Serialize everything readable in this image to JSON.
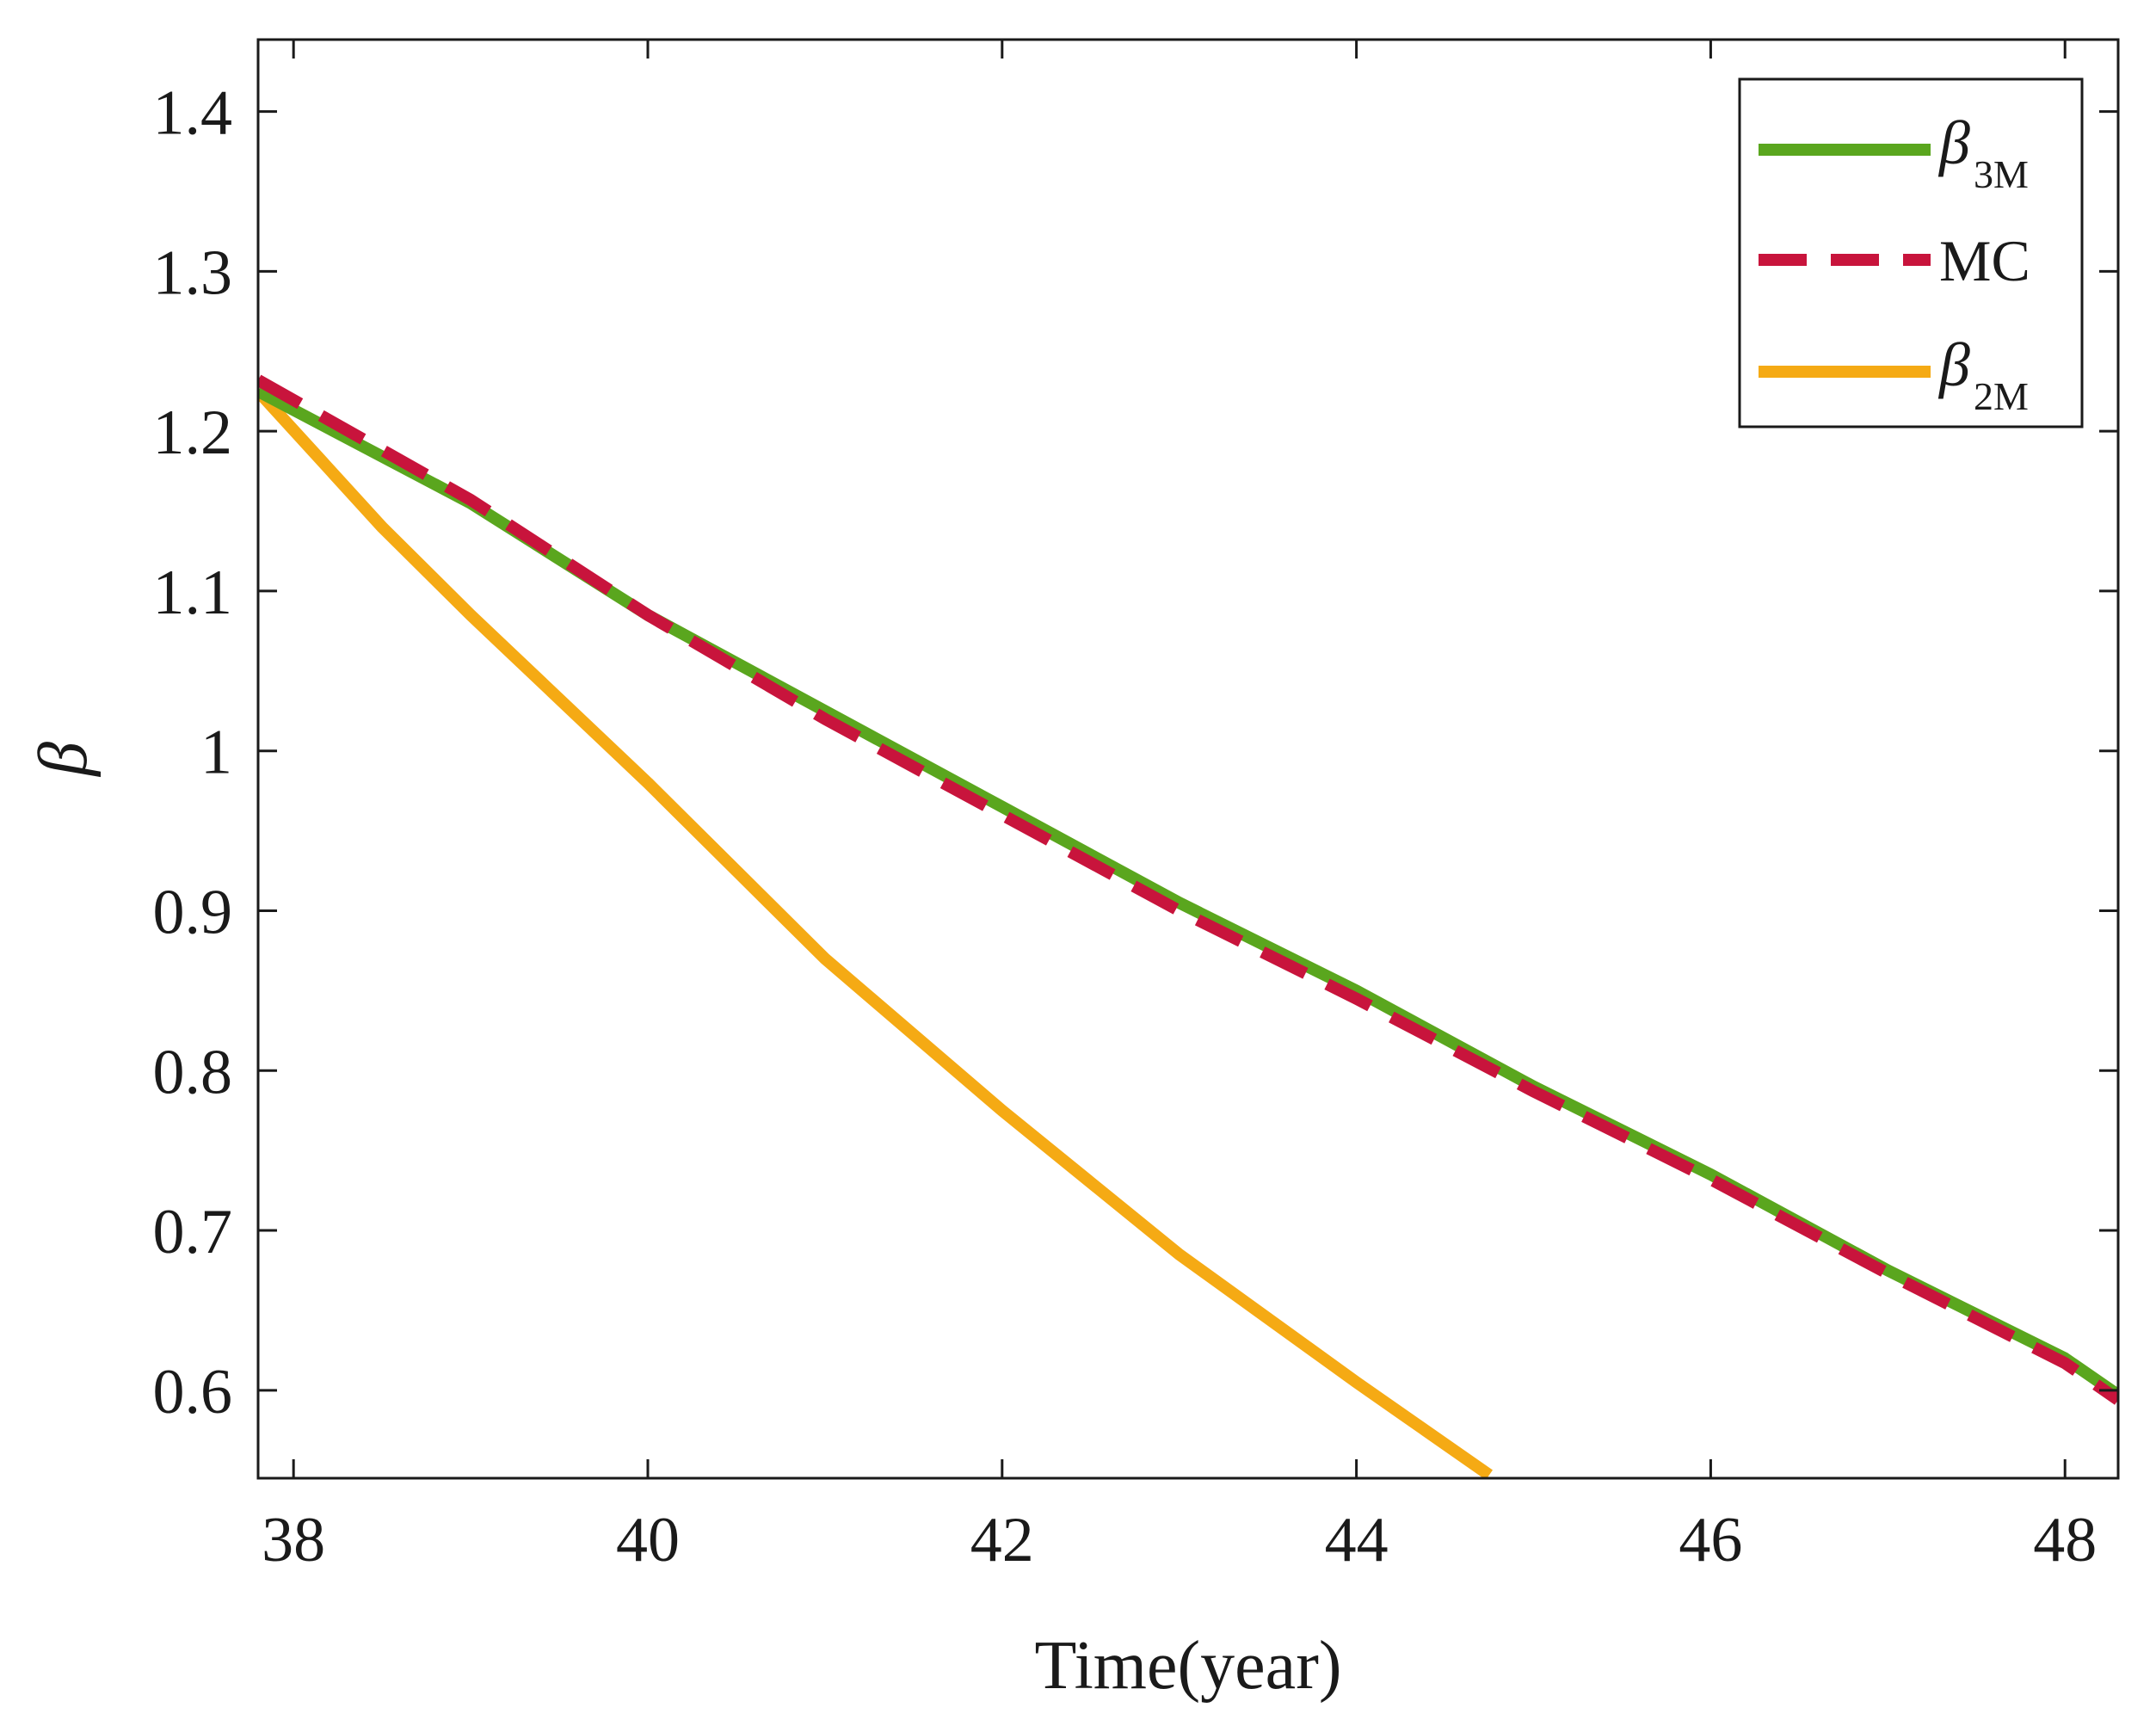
{
  "chart_data": {
    "type": "line",
    "title": "",
    "xlabel": "Time(year)",
    "ylabel": "β",
    "xlim": [
      37.8,
      48.3
    ],
    "ylim": [
      0.545,
      1.445
    ],
    "x_ticks": [
      38,
      40,
      42,
      44,
      46,
      48
    ],
    "x_tick_labels": [
      "38",
      "40",
      "42",
      "44",
      "46",
      "48"
    ],
    "y_ticks": [
      0.6,
      0.7,
      0.8,
      0.9,
      1.0,
      1.1,
      1.2,
      1.3,
      1.4
    ],
    "y_tick_labels": [
      "0.6",
      "0.7",
      "0.8",
      "0.9",
      "1",
      "1.1",
      "1.2",
      "1.3",
      "1.4"
    ],
    "grid": false,
    "legend_position": "top-right",
    "series": [
      {
        "name": "β3M",
        "label_main": "β",
        "label_sub": "3M",
        "color": "#5aa61e",
        "style": "solid",
        "x": [
          37.8,
          39,
          40,
          41,
          42,
          43,
          44,
          45,
          46,
          47,
          48,
          48.3
        ],
        "y": [
          1.225,
          1.155,
          1.085,
          1.025,
          0.965,
          0.905,
          0.85,
          0.79,
          0.735,
          0.675,
          0.62,
          0.597
        ]
      },
      {
        "name": "MC",
        "label_main": "MC",
        "label_sub": "",
        "color": "#c8143c",
        "style": "dashed",
        "x": [
          37.8,
          39,
          40,
          41,
          42,
          43,
          44,
          45,
          46,
          47,
          48,
          48.3
        ],
        "y": [
          1.232,
          1.157,
          1.085,
          1.02,
          0.96,
          0.9,
          0.845,
          0.787,
          0.732,
          0.673,
          0.617,
          0.594
        ]
      },
      {
        "name": "β2M",
        "label_main": "β",
        "label_sub": "2M",
        "color": "#f5aa14",
        "style": "solid",
        "x": [
          37.8,
          38.5,
          39,
          40,
          41,
          42,
          43,
          44,
          44.75
        ],
        "y": [
          1.225,
          1.14,
          1.085,
          0.98,
          0.87,
          0.775,
          0.685,
          0.605,
          0.547
        ]
      }
    ]
  }
}
